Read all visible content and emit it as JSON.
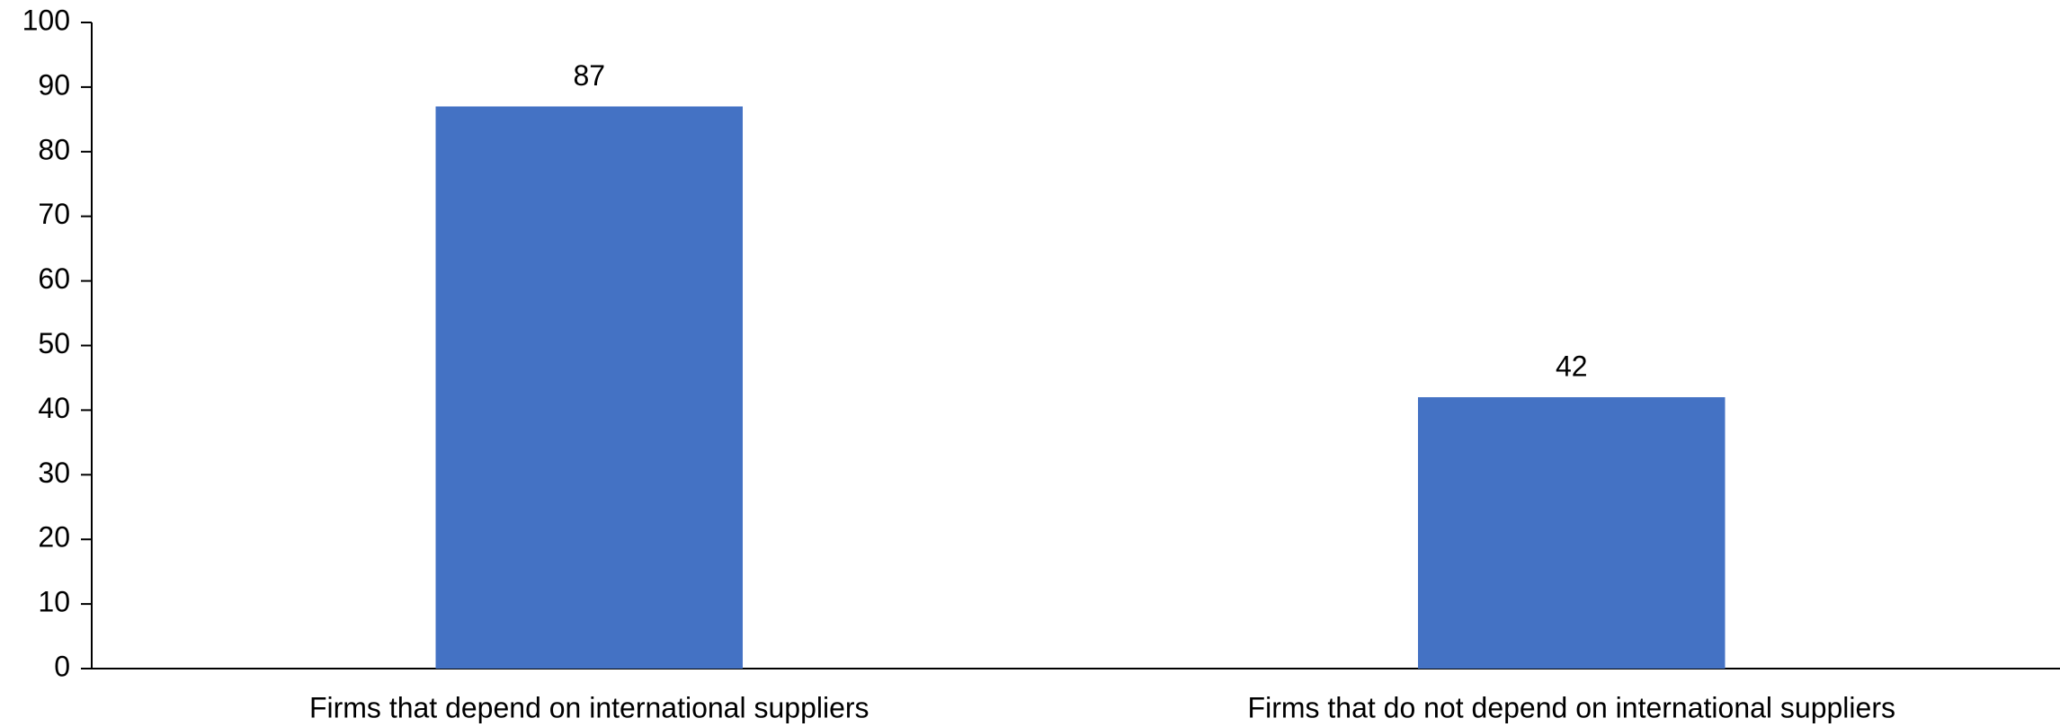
{
  "chart_data": {
    "type": "bar",
    "categories": [
      "Firms that depend on international suppliers",
      "Firms that do not depend on international suppliers"
    ],
    "values": [
      87,
      42
    ],
    "color": "#4472c4",
    "ylim": [
      0,
      100
    ],
    "yticks": [
      0,
      10,
      20,
      30,
      40,
      50,
      60,
      70,
      80,
      90,
      100
    ],
    "grid": false
  }
}
